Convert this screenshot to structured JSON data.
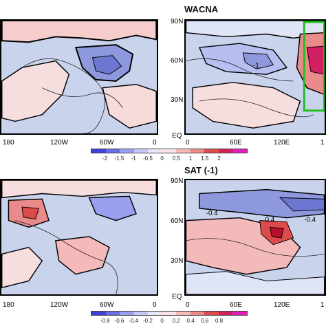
{
  "panel_top_left": {
    "x_ticks": [
      "180",
      "120W",
      "60W",
      "0"
    ]
  },
  "panel_top_right": {
    "title": "WACNA",
    "y_ticks": [
      "90N",
      "60N",
      "30N",
      "EQ"
    ],
    "x_ticks": [
      "0",
      "60E",
      "120E",
      "1"
    ],
    "contour_label": "-1"
  },
  "colorbar_top": {
    "ticks": [
      "-2",
      "-1.5",
      "-1",
      "-0.5",
      "0",
      "0.5",
      "1",
      "1.5",
      "2"
    ],
    "colors": [
      "#3f3fd9",
      "#6b6bea",
      "#9aa0f0",
      "#c4c9f5",
      "#e7e9fb",
      "#fbe3e3",
      "#f4b9b9",
      "#ea8a8a",
      "#dd4b4b",
      "#d11f62",
      "#e01fb8"
    ]
  },
  "panel_bottom_left": {
    "x_ticks": [
      "180",
      "120W",
      "60W",
      "0"
    ]
  },
  "panel_bottom_right": {
    "title": "SAT (-1)",
    "y_ticks": [
      "90N",
      "60N",
      "30N",
      "EQ"
    ],
    "x_ticks": [
      "0",
      "60E",
      "120E",
      "1"
    ],
    "contour_labels": [
      "-0.4",
      "0.4",
      "-0.4"
    ]
  },
  "colorbar_bottom": {
    "ticks": [
      "-0.8",
      "-0.6",
      "-0.4",
      "-0.2",
      "0",
      "0.2",
      "0.4",
      "0.6",
      "0.8"
    ],
    "colors": [
      "#3f3fd9",
      "#6b6bea",
      "#9aa0f0",
      "#c4c9f5",
      "#e7e9fb",
      "#fbe3e3",
      "#f4b9b9",
      "#ea8a8a",
      "#dd4b4b",
      "#d11f62",
      "#e01fb8"
    ]
  }
}
